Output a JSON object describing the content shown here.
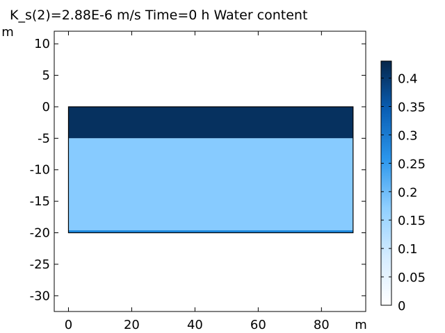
{
  "title": "K_s(2)=2.88E-6 m/s Time=0 h Water content",
  "chart_data": {
    "type": "heatmap",
    "title": "K_s(2)=2.88E-6 m/s Time=0 h Water content",
    "xlabel": "m",
    "ylabel": "m",
    "xlim": [
      -4.5,
      94
    ],
    "ylim": [
      -32.5,
      12
    ],
    "xticks": [
      0,
      20,
      40,
      60,
      80
    ],
    "yticks": [
      10,
      5,
      0,
      -5,
      -10,
      -15,
      -20,
      -25,
      -30
    ],
    "domain": {
      "x": [
        0,
        90
      ],
      "y": [
        -20,
        0
      ]
    },
    "layers": [
      {
        "y_top": 0,
        "y_bottom": -5,
        "value": 0.43,
        "color": "#06315f"
      },
      {
        "y_top": -5,
        "y_bottom": -19.6,
        "value": 0.23,
        "color": "#87cbff"
      },
      {
        "y_top": -19.6,
        "y_bottom": -20,
        "value": 0.35,
        "color": "#1e88dc"
      }
    ],
    "colorbar": {
      "min": 0,
      "max": 0.43,
      "ticks": [
        0,
        0.05,
        0.1,
        0.15,
        0.2,
        0.25,
        0.3,
        0.35,
        0.4
      ],
      "tick_labels": [
        "0",
        "0.05",
        "0.1",
        "0.15",
        "0.2",
        "0.25",
        "0.3",
        "0.35",
        "0.4"
      ],
      "stops": [
        "#ffffff",
        "#d5ecff",
        "#8fcfff",
        "#2b96ec",
        "#0a5fb5",
        "#05264a"
      ]
    },
    "grid": false
  }
}
